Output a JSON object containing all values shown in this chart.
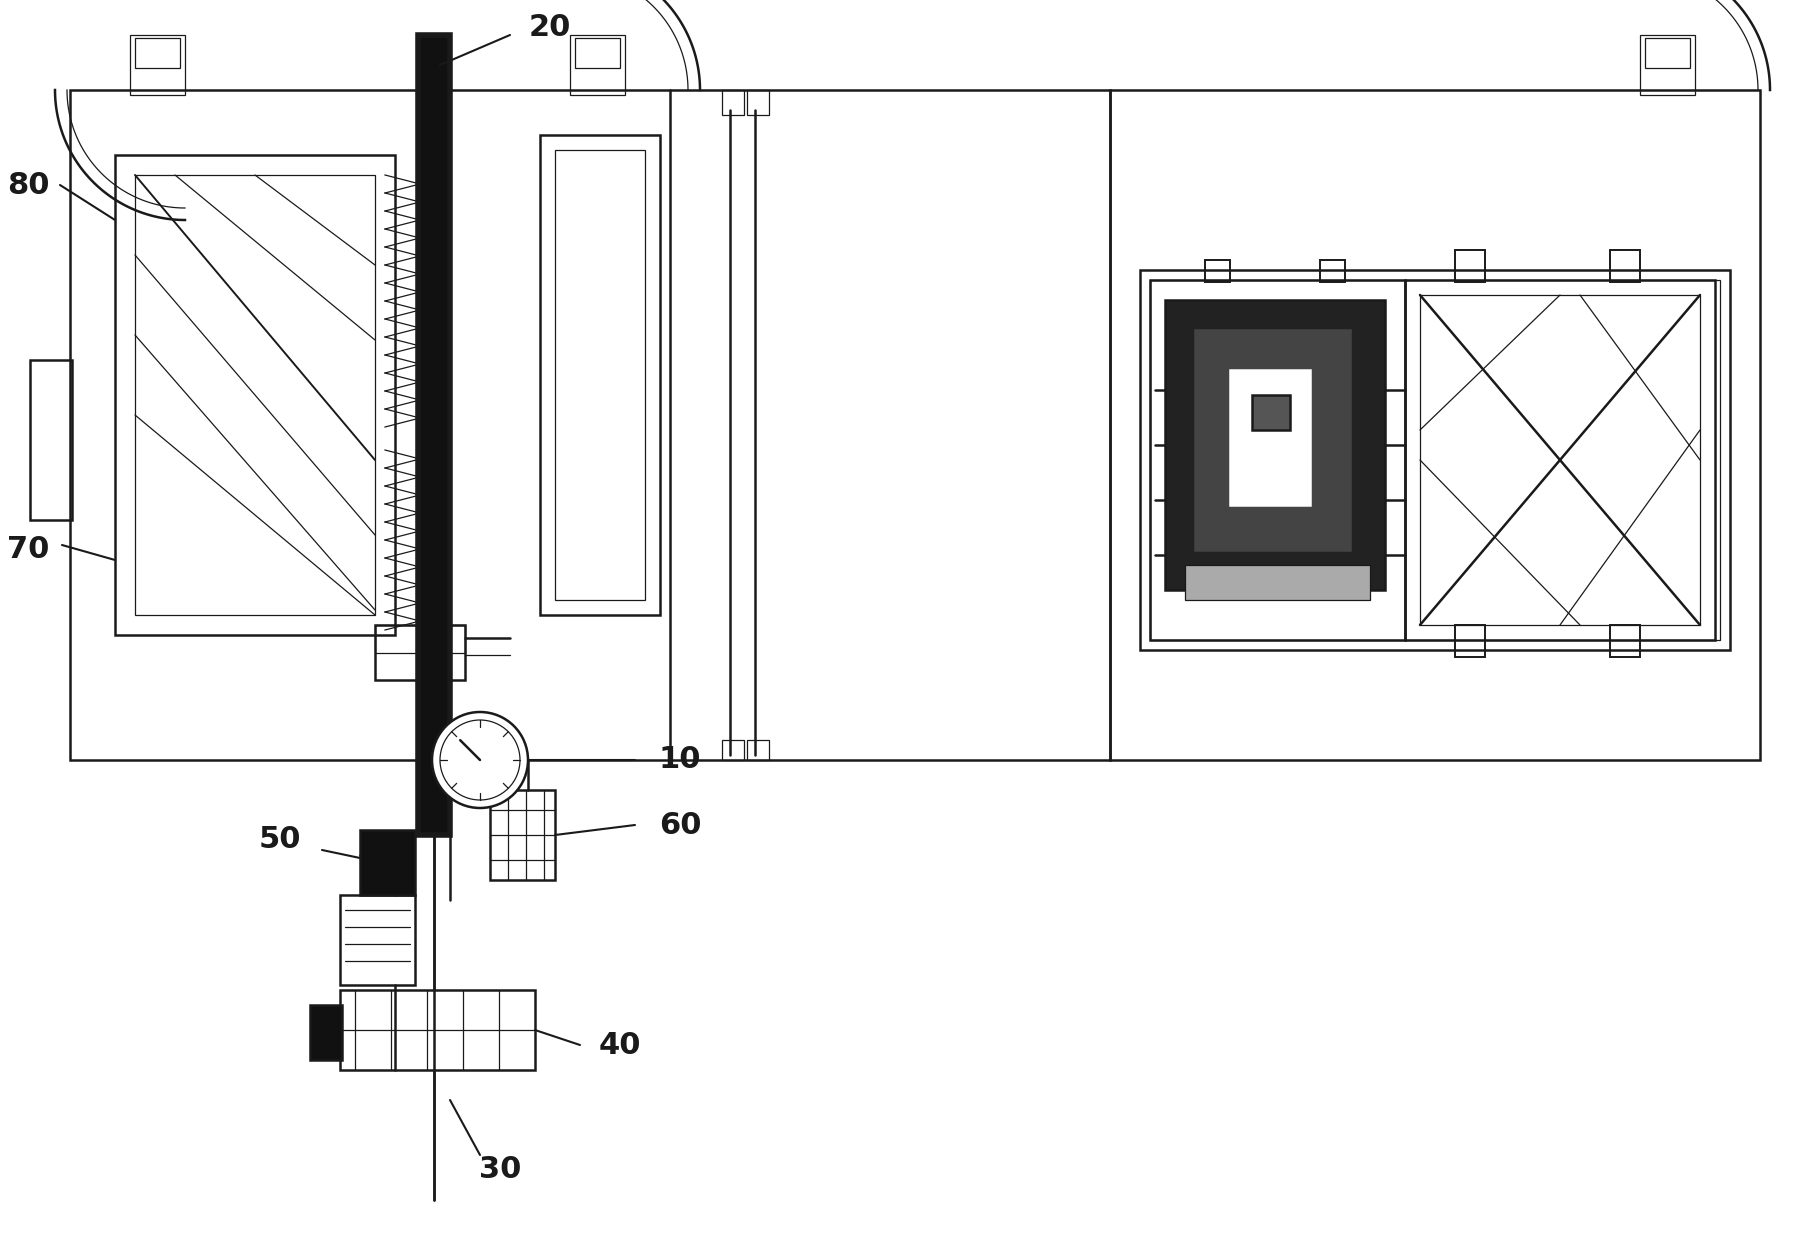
{
  "bg_color": "#ffffff",
  "line_color": "#1a1a1a",
  "lw_main": 1.8,
  "lw_thick": 4.0,
  "lw_thin": 0.9,
  "lw_med": 1.4
}
